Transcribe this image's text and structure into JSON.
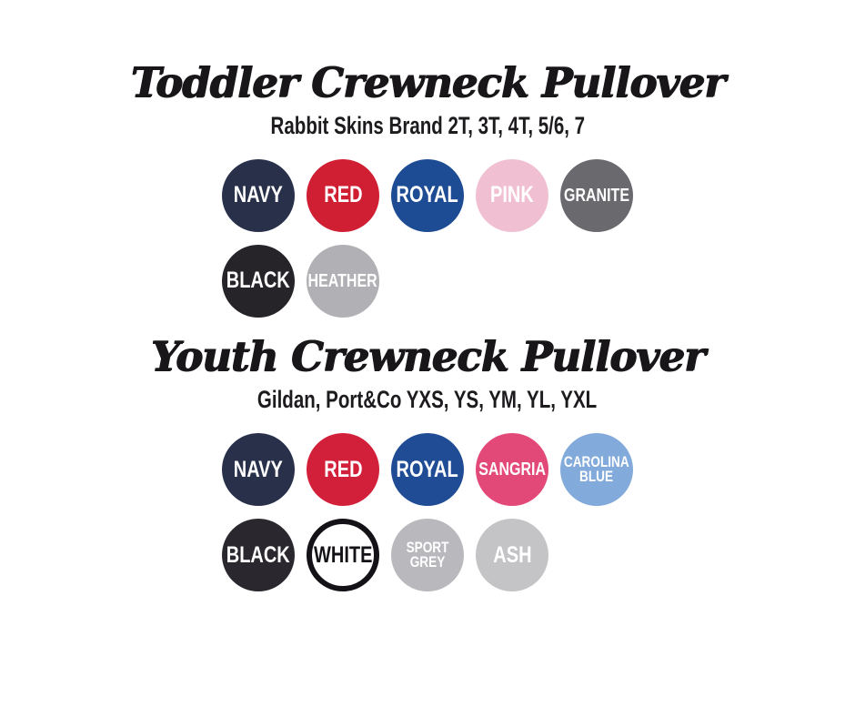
{
  "page": {
    "background_color": "#ffffff"
  },
  "sections": [
    {
      "title": "Toddler Crewneck Pullover",
      "subtitle": "Rabbit Skins Brand 2T, 3T, 4T, 5/6, 7",
      "swatches": [
        {
          "label": "NAVY",
          "color": "#29304a",
          "text_color": "#ffffff"
        },
        {
          "label": "RED",
          "color": "#d01e33",
          "text_color": "#ffffff"
        },
        {
          "label": "ROYAL",
          "color": "#1e4c94",
          "text_color": "#ffffff"
        },
        {
          "label": "PINK",
          "color": "#f0c0d2",
          "text_color": "#ffffff"
        },
        {
          "label": "GRANITE",
          "color": "#6a696e",
          "text_color": "#ffffff"
        },
        {
          "label": "BLACK",
          "color": "#262329",
          "text_color": "#ffffff"
        },
        {
          "label": "HEATHER",
          "color": "#b1b0b4",
          "text_color": "#ffffff"
        }
      ]
    },
    {
      "title": "Youth Crewneck Pullover",
      "subtitle": "Gildan, Port&Co YXS, YS, YM, YL, YXL",
      "swatches": [
        {
          "label": "NAVY",
          "color": "#28304a",
          "text_color": "#ffffff"
        },
        {
          "label": "RED",
          "color": "#d3203a",
          "text_color": "#ffffff"
        },
        {
          "label": "ROYAL",
          "color": "#1f4c94",
          "text_color": "#ffffff"
        },
        {
          "label": "SANGRIA",
          "color": "#e24878",
          "text_color": "#ffffff"
        },
        {
          "label": "CAROLINA BLUE",
          "color": "#82aada",
          "text_color": "#ffffff"
        },
        {
          "label": "BLACK",
          "color": "#2a282e",
          "text_color": "#ffffff"
        },
        {
          "label": "WHITE",
          "color": "#ffffff",
          "text_color": "#141216",
          "border_color": "#141216"
        },
        {
          "label": "SPORT GREY",
          "color": "#b9b9bd",
          "text_color": "#ffffff"
        },
        {
          "label": "ASH",
          "color": "#c4c3c6",
          "text_color": "#ffffff"
        }
      ]
    }
  ]
}
